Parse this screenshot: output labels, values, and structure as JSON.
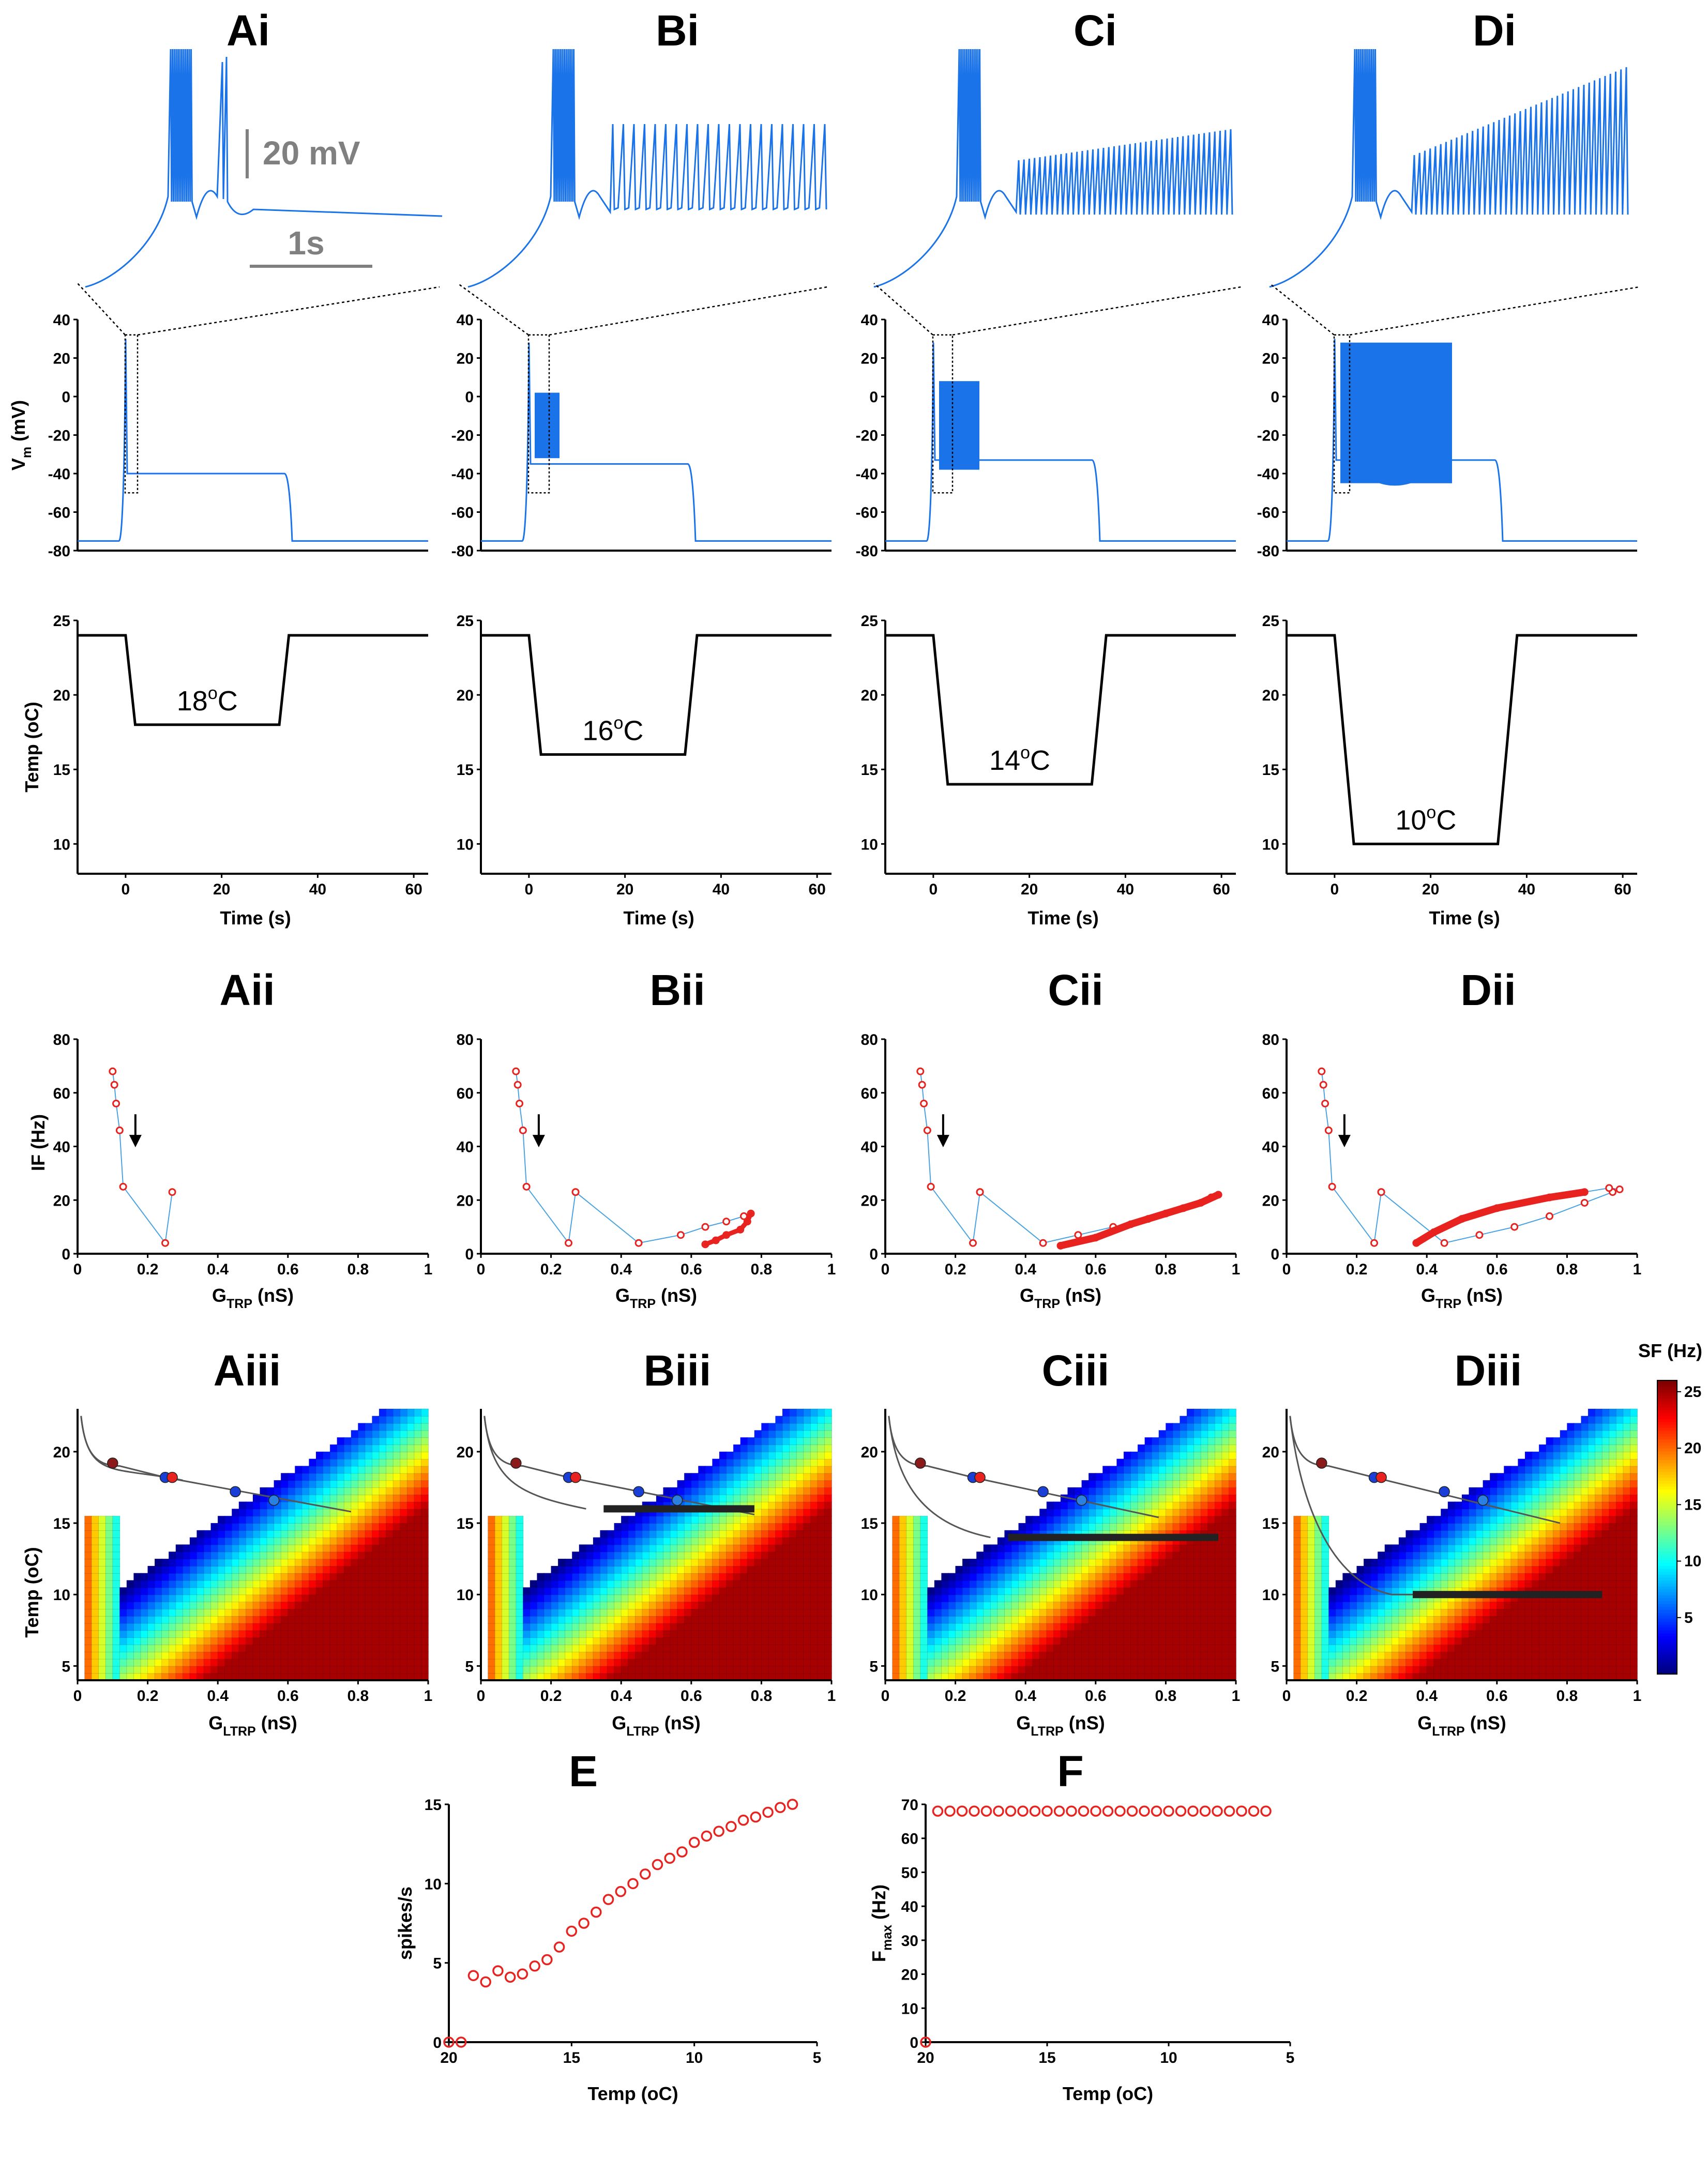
{
  "figure": {
    "panel_labels": {
      "top": [
        "Ai",
        "Bi",
        "Ci",
        "Di"
      ],
      "ii": [
        "Aii",
        "Bii",
        "Cii",
        "Dii"
      ],
      "iii": [
        "Aiii",
        "Biii",
        "Ciii",
        "Diii"
      ],
      "E": "E",
      "F": "F"
    },
    "scale_bar": {
      "voltage": "20 mV",
      "time": "1s"
    },
    "colorbar": {
      "title": "SF (Hz)",
      "ticks": [
        "25",
        "20",
        "15",
        "10",
        "5"
      ]
    },
    "colors": {
      "trace": "#1a73e8",
      "temp": "#000000",
      "points": "#e8231f",
      "grey": "#808080"
    }
  },
  "chart_data": [
    {
      "type": "line",
      "id": "vm_traces",
      "ylabel_main": "V",
      "ylabel_sub": "m",
      "ylabel_unit": " (mV)",
      "ylim": [
        -80,
        40
      ],
      "yticks": [
        "40",
        "20",
        "0",
        "-20",
        "-40",
        "-60",
        "-80"
      ],
      "series": [
        {
          "panel": "A",
          "rest": -75,
          "spike_top": 30,
          "plateau": -40,
          "plateau_end": -40,
          "end": 30,
          "burst": null
        },
        {
          "panel": "B",
          "rest": -75,
          "spike_top": 28,
          "plateau": -35,
          "plateau_end": -35,
          "end": 33,
          "burst": [
            -32,
            2,
            3,
            7
          ]
        },
        {
          "panel": "C",
          "rest": -75,
          "spike_top": 28,
          "plateau": -33,
          "plateau_end": -33,
          "end": 33,
          "burst": [
            -38,
            8,
            3,
            12
          ]
        },
        {
          "panel": "D",
          "rest": -75,
          "spike_top": 30,
          "plateau": -33,
          "plateau_end": -33,
          "end": 34,
          "burst": [
            -45,
            28,
            3,
            35
          ]
        }
      ]
    },
    {
      "type": "line",
      "id": "temperature_protocol",
      "xlabel": "Time (s)",
      "ylabel": "Temp (oC)",
      "xlim": [
        -10,
        63
      ],
      "ylim": [
        8,
        25
      ],
      "xticks": [
        "0",
        "20",
        "40",
        "60"
      ],
      "yticks": [
        "25",
        "20",
        "15",
        "10"
      ],
      "series": [
        {
          "panel": "A",
          "label": "18oC",
          "points": [
            [
              -10,
              24
            ],
            [
              0,
              24
            ],
            [
              2,
              18
            ],
            [
              32,
              18
            ],
            [
              34,
              24
            ],
            [
              63,
              24
            ]
          ]
        },
        {
          "panel": "B",
          "label": "16oC",
          "points": [
            [
              -10,
              24
            ],
            [
              0,
              24
            ],
            [
              2.5,
              16
            ],
            [
              32.5,
              16
            ],
            [
              35,
              24
            ],
            [
              63,
              24
            ]
          ]
        },
        {
          "panel": "C",
          "label": "14oC",
          "points": [
            [
              -10,
              24
            ],
            [
              0,
              24
            ],
            [
              3,
              14
            ],
            [
              33,
              14
            ],
            [
              36,
              24
            ],
            [
              63,
              24
            ]
          ]
        },
        {
          "panel": "D",
          "label": "10oC",
          "points": [
            [
              -10,
              24
            ],
            [
              0,
              24
            ],
            [
              4,
              10
            ],
            [
              34,
              10
            ],
            [
              38,
              24
            ],
            [
              63,
              24
            ]
          ]
        }
      ]
    },
    {
      "type": "line",
      "id": "IF_vs_GTRP",
      "xlabel_main": "G",
      "xlabel_sub": "TRP",
      "xlabel_unit": " (nS)",
      "ylabel": "IF (Hz)",
      "xlim": [
        0,
        1
      ],
      "ylim": [
        0,
        80
      ],
      "xticks": [
        "0",
        "0.2",
        "0.4",
        "0.6",
        "0.8",
        "1"
      ],
      "yticks": [
        "80",
        "60",
        "40",
        "20",
        "0"
      ],
      "common_onset": [
        [
          0.1,
          68
        ],
        [
          0.105,
          63
        ],
        [
          0.11,
          56
        ],
        [
          0.12,
          46
        ],
        [
          0.13,
          25
        ],
        [
          0.25,
          4
        ],
        [
          0.27,
          23
        ]
      ],
      "series": [
        {
          "panel": "A",
          "points": [
            [
              0.1,
              68
            ],
            [
              0.105,
              63
            ],
            [
              0.11,
              56
            ],
            [
              0.12,
              46
            ],
            [
              0.13,
              25
            ],
            [
              0.25,
              4
            ],
            [
              0.27,
              23
            ]
          ]
        },
        {
          "panel": "B",
          "points": [
            [
              0.27,
              23
            ],
            [
              0.45,
              4
            ],
            [
              0.57,
              7
            ],
            [
              0.64,
              10
            ],
            [
              0.7,
              12
            ],
            [
              0.75,
              14
            ],
            [
              0.77,
              15
            ],
            [
              0.76,
              12
            ],
            [
              0.74,
              9
            ],
            [
              0.7,
              7
            ],
            [
              0.67,
              5
            ],
            [
              0.64,
              3.5
            ]
          ]
        },
        {
          "panel": "C",
          "points": [
            [
              0.27,
              23
            ],
            [
              0.45,
              4
            ],
            [
              0.55,
              7
            ],
            [
              0.65,
              10
            ],
            [
              0.75,
              13
            ],
            [
              0.85,
              17
            ],
            [
              0.93,
              21
            ],
            [
              0.95,
              22
            ],
            [
              0.9,
              19
            ],
            [
              0.8,
              15
            ],
            [
              0.7,
              11
            ],
            [
              0.6,
              6
            ],
            [
              0.5,
              3
            ]
          ]
        },
        {
          "panel": "D",
          "points": [
            [
              0.27,
              23
            ],
            [
              0.45,
              4
            ],
            [
              0.55,
              7
            ],
            [
              0.65,
              10
            ],
            [
              0.75,
              14
            ],
            [
              0.85,
              19
            ],
            [
              0.93,
              23
            ],
            [
              0.95,
              24
            ],
            [
              0.92,
              24.5
            ],
            [
              0.85,
              23
            ],
            [
              0.75,
              21
            ],
            [
              0.6,
              17
            ],
            [
              0.5,
              13
            ],
            [
              0.42,
              8
            ],
            [
              0.37,
              4
            ]
          ]
        }
      ]
    },
    {
      "type": "heatmap",
      "id": "SF_maps",
      "xlabel_main": "G",
      "xlabel_sub": "LTRP",
      "xlabel_unit": " (nS)",
      "ylabel": "Temp (oC)",
      "xlim": [
        0,
        1
      ],
      "ylim": [
        4,
        23
      ],
      "xticks": [
        "0",
        "0.2",
        "0.4",
        "0.6",
        "0.8",
        "1"
      ],
      "yticks": [
        "20",
        "15",
        "10",
        "5"
      ],
      "colorbar_range": [
        0,
        26
      ],
      "series": [
        {
          "panel": "A",
          "min_temp": 18
        },
        {
          "panel": "B",
          "min_temp": 16
        },
        {
          "panel": "C",
          "min_temp": 14
        },
        {
          "panel": "D",
          "min_temp": 10
        }
      ]
    },
    {
      "type": "scatter",
      "id": "E",
      "xlabel": "Temp (oC)",
      "ylabel": "spikes/s",
      "xlim": [
        20,
        5
      ],
      "ylim": [
        0,
        15
      ],
      "xticks": [
        "20",
        "15",
        "10",
        "5"
      ],
      "yticks": [
        "15",
        "10",
        "5",
        "0"
      ],
      "x": [
        20,
        19.5,
        19,
        18.5,
        18,
        17.5,
        17,
        16.5,
        16,
        15.5,
        15,
        14.5,
        14,
        13.5,
        13,
        12.5,
        12,
        11.5,
        11,
        10.5,
        10,
        9.5,
        9,
        8.5,
        8,
        7.5,
        7,
        6.5,
        6
      ],
      "y": [
        0,
        0,
        4.2,
        3.8,
        4.5,
        4.1,
        4.3,
        4.8,
        5.2,
        6.0,
        7.0,
        7.5,
        8.2,
        9.0,
        9.5,
        10.0,
        10.6,
        11.2,
        11.6,
        12.0,
        12.6,
        13.0,
        13.3,
        13.6,
        14.0,
        14.2,
        14.5,
        14.8,
        15.0
      ]
    },
    {
      "type": "scatter",
      "id": "F",
      "xlabel": "Temp (oC)",
      "ylabel_main": "F",
      "ylabel_sub": "max",
      "ylabel_unit": " (Hz)",
      "xlim": [
        20,
        5
      ],
      "ylim": [
        0,
        70
      ],
      "xticks": [
        "20",
        "15",
        "10",
        "5"
      ],
      "yticks": [
        "70",
        "60",
        "50",
        "40",
        "30",
        "20",
        "10",
        "0"
      ],
      "x": [
        20,
        19.5,
        19,
        18.5,
        18,
        17.5,
        17,
        16.5,
        16,
        15.5,
        15,
        14.5,
        14,
        13.5,
        13,
        12.5,
        12,
        11.5,
        11,
        10.5,
        10,
        9.5,
        9,
        8.5,
        8,
        7.5,
        7,
        6.5,
        6
      ],
      "y": [
        0,
        68,
        68,
        68,
        68,
        68,
        68,
        68,
        68,
        68,
        68,
        68,
        68,
        68,
        68,
        68,
        68,
        68,
        68,
        68,
        68,
        68,
        68,
        68,
        68,
        68,
        68,
        68,
        68
      ]
    }
  ]
}
